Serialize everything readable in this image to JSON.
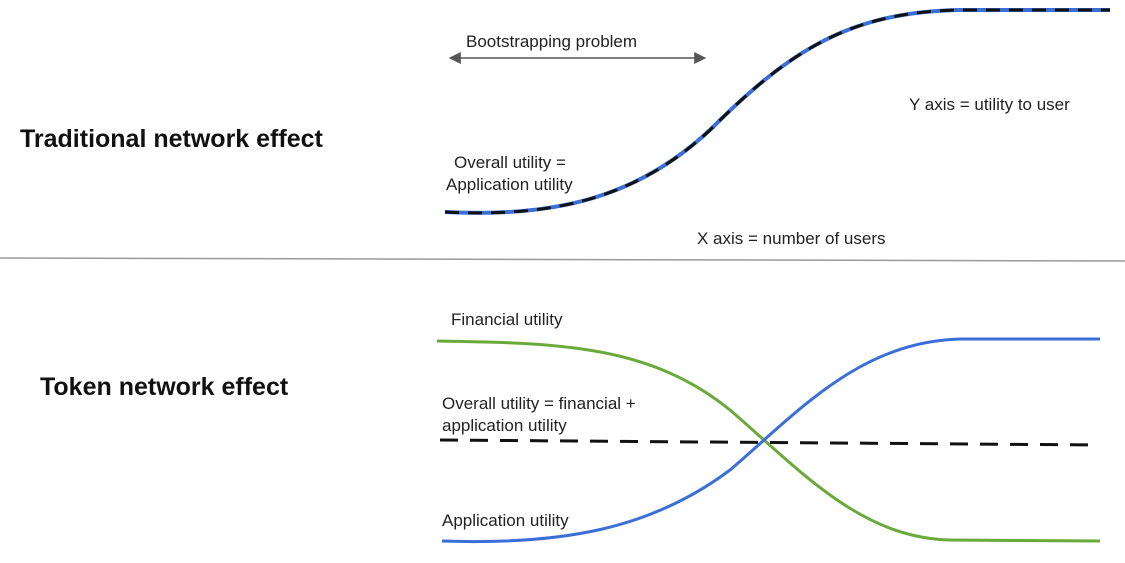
{
  "top_panel": {
    "heading": "Traditional network effect",
    "bootstrap_label": "Bootstrapping problem",
    "curve_label_line1": "Overall utility =",
    "curve_label_line2": "Application utility",
    "y_axis_note": "Y axis = utility to user",
    "x_axis_note": "X axis = number of users"
  },
  "bottom_panel": {
    "heading": "Token network effect",
    "financial_label": "Financial utility",
    "overall_label_line1": "Overall utility = financial +",
    "overall_label_line2": "application utility",
    "application_label": "Application utility"
  },
  "colors": {
    "application": "#3b6fd8",
    "financial": "#6aaa3a",
    "overall": "#111111",
    "divider": "#9a9a9a",
    "arrow": "#555555"
  }
}
